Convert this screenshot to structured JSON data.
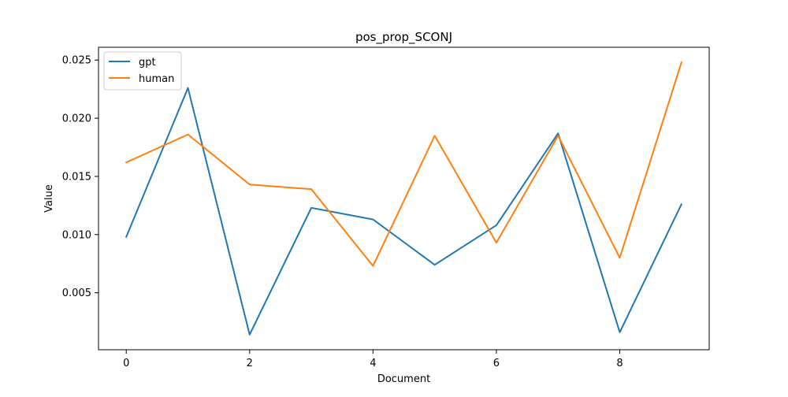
{
  "chart_data": {
    "type": "line",
    "title": "pos_prop_SCONJ",
    "xlabel": "Document",
    "ylabel": "Value",
    "x": [
      0,
      1,
      2,
      3,
      4,
      5,
      6,
      7,
      8,
      9
    ],
    "xlim": [
      -0.45,
      9.45
    ],
    "ylim": [
      0.0001,
      0.0261
    ],
    "xticks": [
      0,
      2,
      4,
      6,
      8
    ],
    "xtick_labels": [
      "0",
      "2",
      "4",
      "6",
      "8"
    ],
    "yticks": [
      0.005,
      0.01,
      0.015,
      0.02,
      0.025
    ],
    "ytick_labels": [
      "0.005",
      "0.010",
      "0.015",
      "0.020",
      "0.025"
    ],
    "grid": false,
    "legend_position": "top-left",
    "series": [
      {
        "name": "gpt",
        "color": "#1f77b4",
        "values": [
          0.0098,
          0.0226,
          0.0014,
          0.0123,
          0.0113,
          0.0074,
          0.0108,
          0.0187,
          0.0016,
          0.0126
        ]
      },
      {
        "name": "human",
        "color": "#ff7f0e",
        "values": [
          0.0162,
          0.0186,
          0.0143,
          0.0139,
          0.0073,
          0.0185,
          0.0093,
          0.0185,
          0.008,
          0.0248
        ]
      }
    ]
  }
}
